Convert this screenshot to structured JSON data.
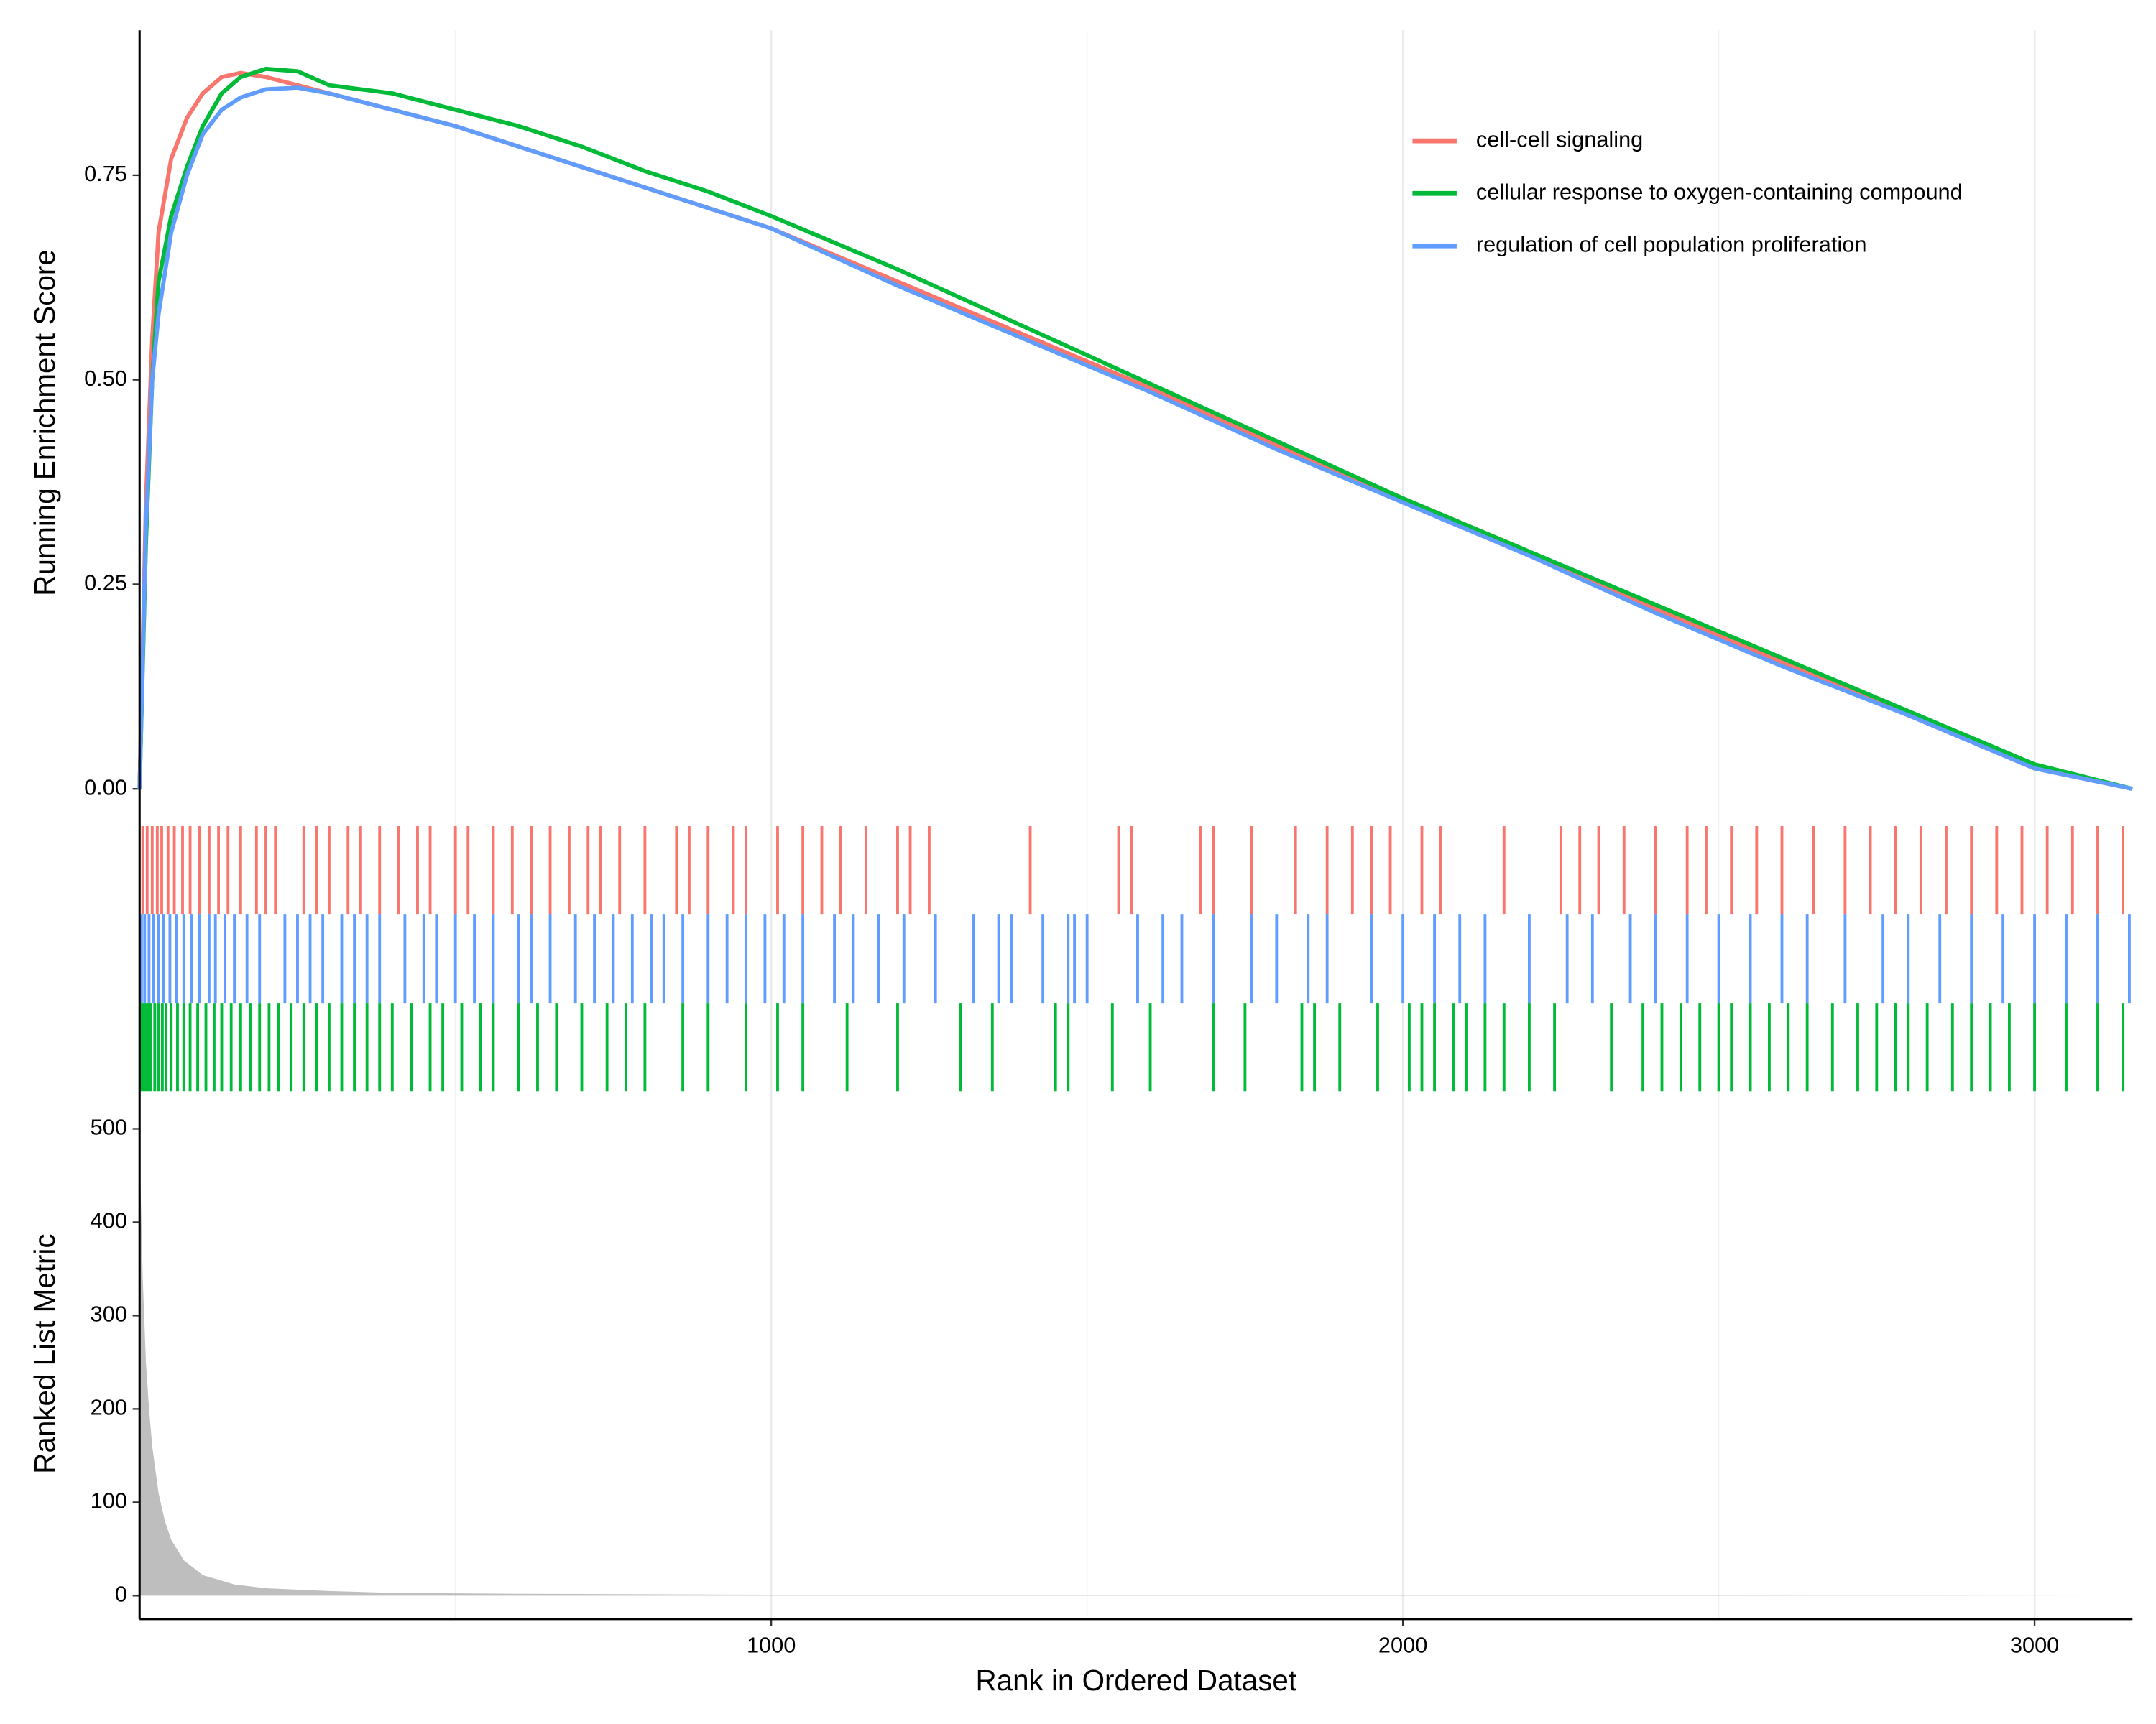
{
  "chart_data": [
    {
      "type": "line",
      "ylabel": "Running Enrichment Score",
      "x": [
        0,
        10,
        20,
        30,
        50,
        75,
        100,
        130,
        160,
        200,
        250,
        300,
        400,
        500,
        600,
        700,
        800,
        900,
        1000,
        1200,
        1400,
        1600,
        1800,
        2000,
        2200,
        2400,
        2600,
        2800,
        3000,
        3155
      ],
      "series": [
        {
          "name": "cell-cell signaling",
          "color": "#f8766d",
          "values": [
            0,
            0.35,
            0.55,
            0.68,
            0.77,
            0.82,
            0.85,
            0.87,
            0.875,
            0.87,
            0.86,
            0.85,
            0.83,
            0.81,
            0.785,
            0.76,
            0.735,
            0.71,
            0.685,
            0.62,
            0.555,
            0.49,
            0.42,
            0.355,
            0.29,
            0.22,
            0.155,
            0.09,
            0.025,
            0
          ]
        },
        {
          "name": "cellular response to oxygen-containing compound",
          "color": "#00ba38",
          "values": [
            0,
            0.3,
            0.5,
            0.62,
            0.7,
            0.76,
            0.81,
            0.85,
            0.87,
            0.88,
            0.877,
            0.86,
            0.85,
            0.83,
            0.81,
            0.785,
            0.755,
            0.73,
            0.7,
            0.635,
            0.565,
            0.495,
            0.425,
            0.355,
            0.29,
            0.225,
            0.16,
            0.095,
            0.03,
            0
          ]
        },
        {
          "name": "regulation of cell population proliferation",
          "color": "#619cff",
          "values": [
            0,
            0.32,
            0.5,
            0.58,
            0.68,
            0.75,
            0.8,
            0.83,
            0.845,
            0.855,
            0.857,
            0.85,
            0.83,
            0.81,
            0.785,
            0.76,
            0.735,
            0.71,
            0.685,
            0.615,
            0.55,
            0.485,
            0.415,
            0.35,
            0.285,
            0.215,
            0.15,
            0.09,
            0.025,
            0
          ]
        }
      ],
      "xlim": [
        0,
        3155
      ],
      "ylim": [
        -0.032,
        0.927
      ],
      "yticks": [
        {
          "value": 0,
          "label": "0.00"
        },
        {
          "value": 0.25,
          "label": "0.25"
        },
        {
          "value": 0.5,
          "label": "0.50"
        },
        {
          "value": 0.75,
          "label": "0.75"
        }
      ],
      "legend": "top-right"
    },
    {
      "type": "rug",
      "xlim": [
        0,
        3155
      ],
      "series": [
        {
          "color": "#f8766d",
          "x": [
            5,
            12,
            20,
            28,
            35,
            45,
            55,
            68,
            80,
            95,
            110,
            125,
            140,
            160,
            185,
            200,
            215,
            260,
            280,
            300,
            330,
            350,
            380,
            410,
            440,
            460,
            500,
            520,
            560,
            590,
            620,
            650,
            680,
            710,
            730,
            760,
            800,
            850,
            870,
            900,
            940,
            960,
            1010,
            1050,
            1080,
            1110,
            1150,
            1200,
            1220,
            1250,
            1410,
            1550,
            1570,
            1680,
            1700,
            1760,
            1830,
            1880,
            1920,
            1950,
            1980,
            2030,
            2060,
            2160,
            2250,
            2280,
            2310,
            2350,
            2400,
            2450,
            2480,
            2520,
            2560,
            2600,
            2650,
            2700,
            2740,
            2780,
            2820,
            2860,
            2900,
            2940,
            2980,
            3020,
            3060,
            3100,
            3140
          ]
        },
        {
          "color": "#619cff",
          "x": [
            3,
            8,
            15,
            22,
            30,
            38,
            48,
            58,
            70,
            82,
            95,
            110,
            120,
            135,
            150,
            170,
            190,
            230,
            250,
            270,
            290,
            320,
            340,
            360,
            380,
            420,
            450,
            470,
            500,
            530,
            560,
            600,
            620,
            650,
            690,
            720,
            750,
            780,
            810,
            830,
            860,
            900,
            930,
            960,
            990,
            1020,
            1050,
            1100,
            1130,
            1170,
            1210,
            1260,
            1320,
            1360,
            1380,
            1430,
            1470,
            1480,
            1500,
            1580,
            1620,
            1650,
            1700,
            1760,
            1800,
            1850,
            1880,
            1950,
            2000,
            2050,
            2090,
            2130,
            2200,
            2260,
            2300,
            2360,
            2400,
            2450,
            2500,
            2550,
            2600,
            2640,
            2700,
            2760,
            2800,
            2850,
            2900,
            2950,
            3000,
            3050,
            3100,
            3150
          ]
        },
        {
          "color": "#00ba38",
          "x": [
            2,
            6,
            10,
            14,
            18,
            24,
            30,
            36,
            42,
            50,
            60,
            70,
            80,
            92,
            105,
            118,
            130,
            145,
            160,
            175,
            190,
            205,
            220,
            240,
            260,
            280,
            300,
            320,
            340,
            360,
            380,
            400,
            430,
            460,
            480,
            510,
            540,
            560,
            600,
            630,
            660,
            700,
            740,
            770,
            800,
            860,
            900,
            960,
            1010,
            1050,
            1120,
            1200,
            1300,
            1350,
            1450,
            1470,
            1540,
            1600,
            1700,
            1750,
            1840,
            1860,
            1900,
            1960,
            2010,
            2030,
            2050,
            2080,
            2100,
            2130,
            2160,
            2200,
            2240,
            2330,
            2380,
            2410,
            2440,
            2470,
            2500,
            2520,
            2550,
            2580,
            2610,
            2640,
            2680,
            2720,
            2750,
            2780,
            2800,
            2830,
            2870,
            2900,
            2930,
            2960,
            3000,
            3050,
            3100,
            3140
          ]
        }
      ]
    },
    {
      "type": "area",
      "ylabel": "Ranked List Metric",
      "xlabel": "Rank in Ordered Dataset",
      "x": [
        1,
        5,
        10,
        15,
        20,
        30,
        40,
        50,
        70,
        100,
        150,
        200,
        300,
        400,
        600,
        1000,
        2000,
        3155
      ],
      "values": [
        455,
        340,
        250,
        200,
        160,
        110,
        80,
        60,
        38,
        22,
        12,
        8,
        5,
        3,
        2,
        1,
        0.5,
        0
      ],
      "color": "#bebebe",
      "xlim": [
        0,
        3155
      ],
      "xticks": [
        1000,
        2000,
        3000
      ],
      "x_minor_ticks": [
        500,
        1500,
        2500
      ],
      "ylim": [
        -25,
        518
      ],
      "yticks": [
        0,
        100,
        200,
        300,
        400,
        500
      ]
    }
  ]
}
